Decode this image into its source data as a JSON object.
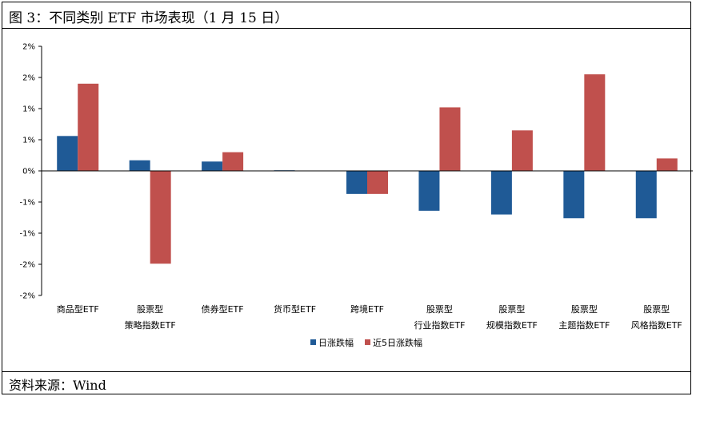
{
  "figure": {
    "title": "图 3：不同类别 ETF 市场表现（1 月 15 日）",
    "source": "资料来源：Wind"
  },
  "chart_data": {
    "type": "bar",
    "categories": [
      [
        "商品型ETF"
      ],
      [
        "股票型",
        "策略指数ETF"
      ],
      [
        "债券型ETF"
      ],
      [
        "货币型ETF"
      ],
      [
        "跨境ETF"
      ],
      [
        "股票型",
        "行业指数ETF"
      ],
      [
        "股票型",
        "规模指数ETF"
      ],
      [
        "股票型",
        "主题指数ETF"
      ],
      [
        "股票型",
        "风格指数ETF"
      ]
    ],
    "series": [
      {
        "name": "日涨跌幅",
        "color": "#1f5a96",
        "values": [
          0.56,
          0.17,
          0.15,
          0.01,
          -0.37,
          -0.64,
          -0.7,
          -0.76,
          -0.76
        ]
      },
      {
        "name": "近5日涨跌幅",
        "color": "#c0504d",
        "values": [
          1.4,
          -1.49,
          0.3,
          0.0,
          -0.37,
          1.02,
          0.65,
          1.55,
          0.2
        ]
      }
    ],
    "yticks": [
      2.0,
      1.5,
      1.0,
      0.5,
      0.0,
      -0.5,
      -1.0,
      -1.5,
      -2.0
    ],
    "ytick_labels": [
      "2%",
      "2%",
      "1%",
      "1%",
      "0%",
      "-1%",
      "-1%",
      "-2%",
      "-2%"
    ],
    "ylim": [
      -2.0,
      2.0
    ],
    "legend_position": "bottom-center",
    "grid": false
  }
}
